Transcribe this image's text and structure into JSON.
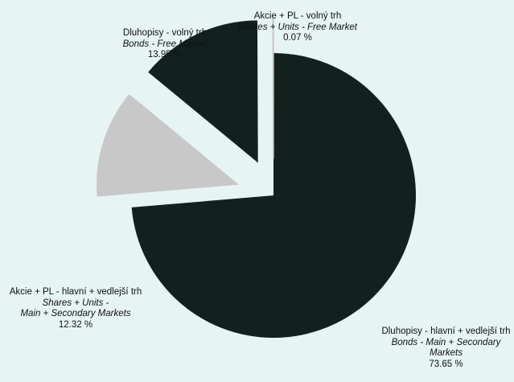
{
  "chart_data": {
    "type": "pie",
    "title": "",
    "slices": [
      {
        "label_cz": "Dluhopisy - hlavní + vedlejší trh",
        "label_en": "Bonds - Main + Secondary Markets",
        "value": 73.65,
        "value_label": "73.65 %",
        "color": "#12201e",
        "exploded": false
      },
      {
        "label_cz": "Akcie + PL - hlavní + vedlejší trh",
        "label_en_line1": "Shares + Units -",
        "label_en_line2": "Main + Secondary Markets",
        "value": 12.32,
        "value_label": "12.32 %",
        "color": "#c8c8c8",
        "exploded": true
      },
      {
        "label_cz": "Dluhopisy - volný trh",
        "label_en": "Bonds - Free Market",
        "value": 13.95,
        "value_label": "13.95 %",
        "color": "#12201e",
        "exploded": true
      },
      {
        "label_cz": "Akcie + PL - volný trh",
        "label_en": "Shares + Units - Free Market",
        "value": 0.07,
        "value_label": "0.07 %",
        "color": "#c8c8c8",
        "exploded": true
      }
    ]
  }
}
